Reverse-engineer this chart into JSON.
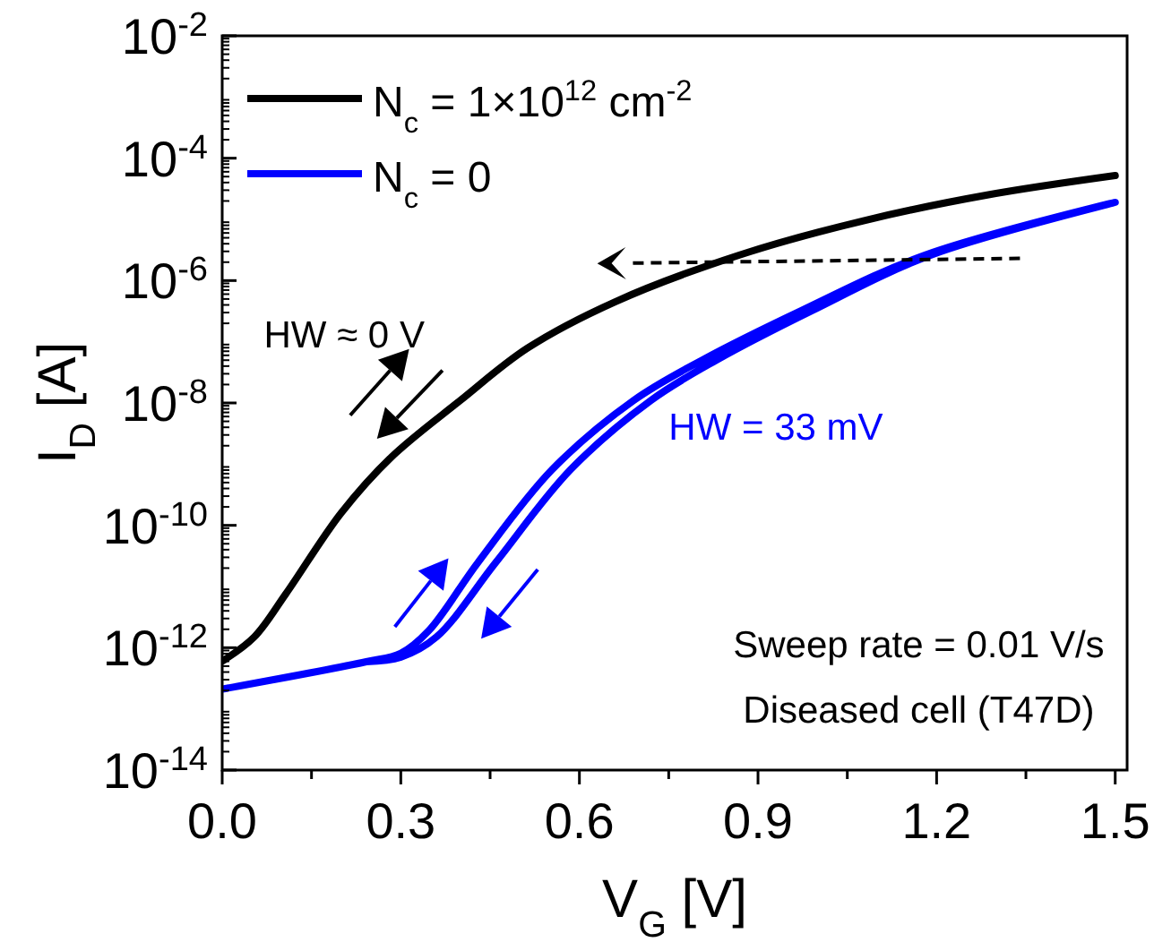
{
  "chart_data": {
    "type": "line",
    "xlabel": "V$_{G}$ [V]",
    "ylabel": "I$_{D}$ [A]",
    "log": "y",
    "xlim": [
      0,
      1.52
    ],
    "ylim": [
      1e-14,
      0.01
    ],
    "xticks": [
      {
        "value": 0,
        "label": "0.0"
      },
      {
        "value": 0.15,
        "label": null
      },
      0.3,
      {
        "value": 0.45,
        "label": null
      },
      0.6,
      {
        "value": 0.75,
        "label": null
      },
      0.9,
      {
        "value": 1.05,
        "label": null
      },
      1.2,
      {
        "value": 1.35,
        "label": null
      },
      1.5
    ],
    "yticks": [
      {
        "value": 1e-14,
        "label": "10$^{-14}$"
      },
      {
        "value": 1e-12,
        "label": "10$^{-12}$"
      },
      {
        "value": 1e-10,
        "label": "10$^{-10}$"
      },
      {
        "value": 1e-08,
        "label": "10$^{-8}$"
      },
      {
        "value": 1e-06,
        "label": "10$^{-6}$"
      },
      {
        "value": 0.0001,
        "label": "10$^{-4}$"
      },
      {
        "value": 0.01,
        "label": "10$^{-2}$"
      }
    ],
    "grid": false,
    "legend": "top left",
    "marker": "none",
    "line_style": "solid",
    "series": [
      {
        "name": "N$_{c}$ = 1×10$^{12}$ cm$^{-2}$",
        "color": "#000000",
        "x": [
          0,
          0.054,
          0.107,
          0.2,
          0.284,
          0.4,
          0.513,
          0.66,
          0.868,
          1.077,
          1.285,
          1.5
        ],
        "values": [
          6e-13,
          1.5e-12,
          7.6e-12,
          1.6e-10,
          1.3e-09,
          1.1e-08,
          7.9e-08,
          4.5e-07,
          2.6e-06,
          9.5e-06,
          2.5e-05,
          5.2e-05
        ]
      },
      {
        "name": "N$_{c}$ = 0",
        "color": "#0000ff",
        "x": [
          0,
          0.242,
          0.3,
          0.347,
          0.43,
          0.554,
          0.691,
          0.806,
          0.972,
          1.18,
          1.5,
          1.19,
          0.99,
          0.83,
          0.72,
          0.585,
          0.46,
          0.36,
          0.3,
          0.242
        ],
        "values": [
          2.1e-13,
          5.9e-13,
          8.1e-13,
          1.9e-12,
          2.5e-11,
          8.1e-10,
          1.1e-08,
          5e-08,
          3.2e-07,
          2.6e-06,
          1.9e-05,
          2.6e-06,
          3.2e-07,
          5e-08,
          1.1e-08,
          8.1e-10,
          2.5e-11,
          1.5e-12,
          7e-13,
          5.9e-13
        ]
      }
    ],
    "annotations": [
      "HW ≈ 0 V",
      "HW = 33 mV",
      "Sweep rate = 0.01 V/s",
      "Diseased cell (T47D)"
    ]
  }
}
